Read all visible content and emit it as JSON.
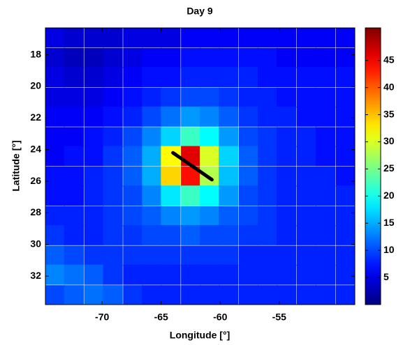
{
  "chart_data": {
    "type": "heatmap",
    "title": "Day 9",
    "x_label": "Longitude [°]",
    "y_label": "Latitude [°]",
    "colormap": "jet",
    "xlim": [
      -74.8,
      -48.6
    ],
    "ylim": [
      33.8,
      16.3
    ],
    "xticks": [
      -70,
      -65,
      -60,
      -55
    ],
    "yticks": [
      18,
      20,
      22,
      24,
      26,
      28,
      30,
      32
    ],
    "clim": [
      0,
      51
    ],
    "cticks": [
      5,
      10,
      15,
      20,
      25,
      30,
      35,
      40,
      45
    ],
    "x": [
      -74.0,
      -72.4,
      -70.7,
      -69.1,
      -67.4,
      -65.8,
      -64.2,
      -62.5,
      -60.9,
      -59.3,
      -57.6,
      -56.0,
      -54.4,
      -52.7,
      -51.1,
      -49.4
    ],
    "y": [
      16.9,
      18.2,
      19.4,
      20.7,
      21.9,
      23.2,
      24.4,
      25.7,
      26.9,
      28.2,
      29.4,
      30.7,
      31.9,
      33.2
    ],
    "z": [
      [
        5,
        4,
        4,
        4,
        5,
        5,
        5,
        6,
        6,
        6,
        6,
        6,
        6,
        6,
        6,
        6
      ],
      [
        4,
        3,
        3,
        4,
        5,
        6,
        6,
        7,
        7,
        7,
        7,
        7,
        6,
        6,
        6,
        6
      ],
      [
        5,
        4,
        4,
        5,
        6,
        7,
        7,
        8,
        8,
        8,
        8,
        7,
        7,
        7,
        7,
        7
      ],
      [
        5,
        5,
        5,
        6,
        7,
        8,
        9,
        10,
        10,
        9,
        8,
        8,
        7,
        7,
        7,
        7
      ],
      [
        6,
        6,
        6,
        7,
        8,
        10,
        12,
        14,
        13,
        11,
        9,
        8,
        8,
        7,
        7,
        7
      ],
      [
        6,
        6,
        7,
        8,
        10,
        13,
        17,
        22,
        19,
        14,
        10,
        9,
        8,
        8,
        7,
        7
      ],
      [
        6,
        7,
        7,
        9,
        11,
        15,
        32,
        46,
        30,
        17,
        11,
        9,
        8,
        8,
        7,
        7
      ],
      [
        7,
        7,
        8,
        9,
        11,
        15,
        34,
        44,
        28,
        16,
        11,
        9,
        8,
        8,
        8,
        7
      ],
      [
        7,
        7,
        8,
        9,
        10,
        13,
        18,
        22,
        19,
        14,
        10,
        9,
        8,
        8,
        8,
        8
      ],
      [
        8,
        8,
        8,
        9,
        10,
        11,
        13,
        14,
        13,
        11,
        10,
        9,
        8,
        8,
        8,
        8
      ],
      [
        9,
        8,
        8,
        9,
        9,
        10,
        10,
        11,
        10,
        10,
        9,
        9,
        8,
        8,
        8,
        8
      ],
      [
        11,
        10,
        9,
        9,
        9,
        9,
        9,
        9,
        9,
        9,
        8,
        8,
        8,
        8,
        8,
        8
      ],
      [
        13,
        12,
        11,
        9,
        8,
        8,
        8,
        8,
        8,
        8,
        8,
        8,
        8,
        8,
        8,
        8
      ],
      [
        10,
        11,
        12,
        11,
        9,
        8,
        8,
        8,
        8,
        8,
        8,
        8,
        8,
        8,
        8,
        8
      ]
    ],
    "track": {
      "x": [
        -64,
        -60.7
      ],
      "y": [
        24.2,
        25.9
      ],
      "color": "#000000"
    }
  }
}
